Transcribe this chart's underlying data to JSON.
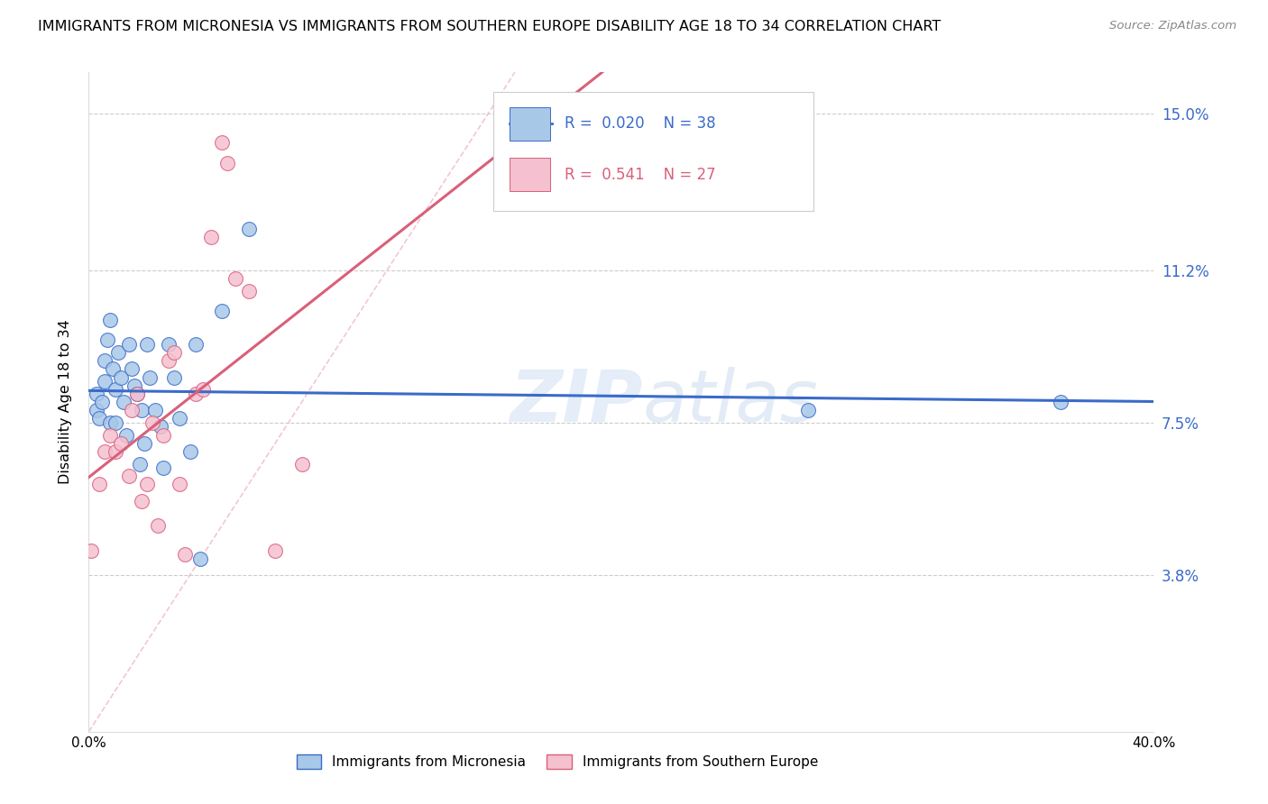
{
  "title": "IMMIGRANTS FROM MICRONESIA VS IMMIGRANTS FROM SOUTHERN EUROPE DISABILITY AGE 18 TO 34 CORRELATION CHART",
  "source": "Source: ZipAtlas.com",
  "ylabel": "Disability Age 18 to 34",
  "legend_label1": "Immigrants from Micronesia",
  "legend_label2": "Immigrants from Southern Europe",
  "R1": 0.02,
  "N1": 38,
  "R2": 0.541,
  "N2": 27,
  "xlim": [
    0.0,
    0.4
  ],
  "ylim": [
    0.0,
    0.16
  ],
  "ytick_values": [
    0.038,
    0.075,
    0.112,
    0.15
  ],
  "ytick_labels": [
    "3.8%",
    "7.5%",
    "11.2%",
    "15.0%"
  ],
  "color_blue": "#a8c8e8",
  "color_pink": "#f5c0d0",
  "line_blue": "#3a6bc9",
  "line_pink": "#d9607a",
  "watermark_color": "#c5d8f0",
  "diag_color": "#f0b8c8",
  "blue_x": [
    0.003,
    0.003,
    0.004,
    0.005,
    0.006,
    0.006,
    0.007,
    0.008,
    0.008,
    0.009,
    0.01,
    0.01,
    0.011,
    0.012,
    0.013,
    0.014,
    0.015,
    0.016,
    0.017,
    0.018,
    0.019,
    0.02,
    0.021,
    0.022,
    0.023,
    0.025,
    0.027,
    0.028,
    0.03,
    0.032,
    0.034,
    0.038,
    0.04,
    0.042,
    0.05,
    0.06,
    0.27,
    0.365
  ],
  "blue_y": [
    0.082,
    0.078,
    0.076,
    0.08,
    0.09,
    0.085,
    0.095,
    0.1,
    0.075,
    0.088,
    0.083,
    0.075,
    0.092,
    0.086,
    0.08,
    0.072,
    0.094,
    0.088,
    0.084,
    0.082,
    0.065,
    0.078,
    0.07,
    0.094,
    0.086,
    0.078,
    0.074,
    0.064,
    0.094,
    0.086,
    0.076,
    0.068,
    0.094,
    0.042,
    0.102,
    0.122,
    0.078,
    0.08
  ],
  "pink_x": [
    0.001,
    0.004,
    0.006,
    0.008,
    0.01,
    0.012,
    0.015,
    0.016,
    0.018,
    0.02,
    0.022,
    0.024,
    0.026,
    0.028,
    0.03,
    0.032,
    0.034,
    0.036,
    0.04,
    0.043,
    0.046,
    0.05,
    0.052,
    0.055,
    0.06,
    0.07,
    0.08
  ],
  "pink_y": [
    0.044,
    0.06,
    0.068,
    0.072,
    0.068,
    0.07,
    0.062,
    0.078,
    0.082,
    0.056,
    0.06,
    0.075,
    0.05,
    0.072,
    0.09,
    0.092,
    0.06,
    0.043,
    0.082,
    0.083,
    0.12,
    0.143,
    0.138,
    0.11,
    0.107,
    0.044,
    0.065
  ]
}
